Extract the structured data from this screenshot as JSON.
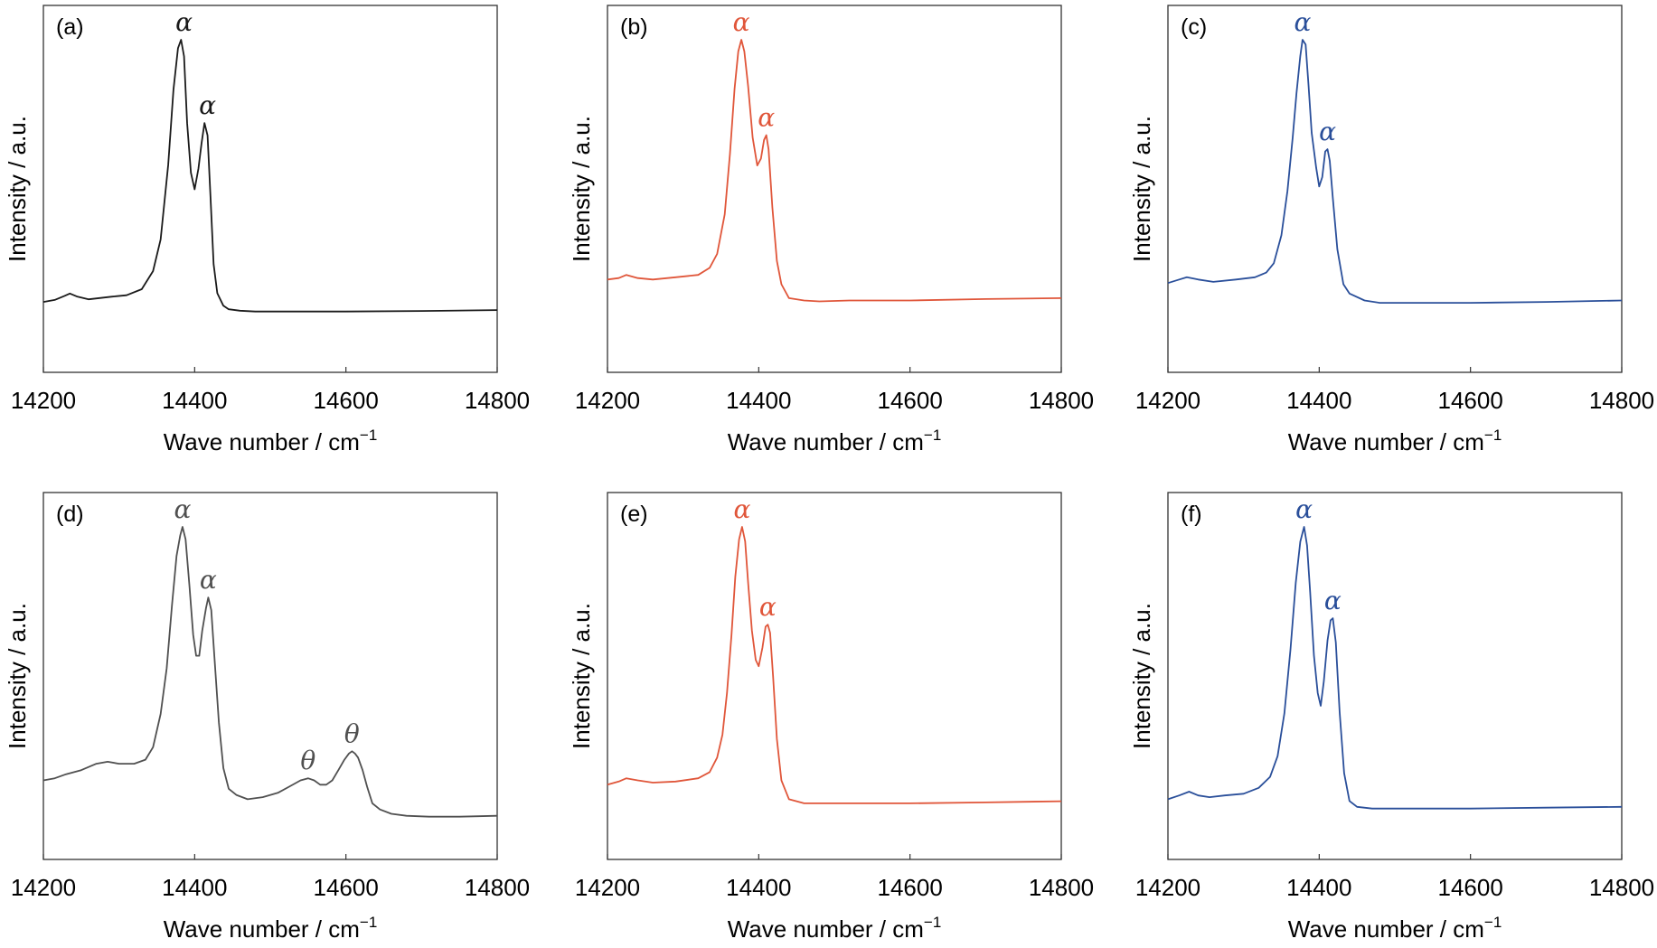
{
  "colors": {
    "black": "#1a1a1a",
    "gray": "#505050",
    "red": "#e0563a",
    "blue": "#2a4f9a"
  },
  "xlabel": "Wave number / cm",
  "xlabel_sup": "−1",
  "ylabel": "Intensity / a.u.",
  "chart_data": [
    {
      "type": "line",
      "panel": "(a)",
      "color": "#1a1a1a",
      "xlim": [
        14200,
        14800
      ],
      "xticks": [
        14200,
        14400,
        14600,
        14800
      ],
      "xlabel": "Wave number / cm−1",
      "ylabel": "Intensity / a.u.",
      "ylim": [
        0,
        100
      ],
      "series": [
        {
          "x": [
            14200,
            14215,
            14228,
            14235,
            14245,
            14260,
            14290,
            14310,
            14330,
            14345,
            14355,
            14365,
            14372,
            14378,
            14382,
            14386,
            14390,
            14395,
            14400,
            14405,
            14409,
            14413,
            14417,
            14421,
            14425,
            14430,
            14438,
            14445,
            14460,
            14480,
            14520,
            14600,
            14700,
            14800
          ],
          "y": [
            9.9,
            10.6,
            12.0,
            12.8,
            11.7,
            10.8,
            11.7,
            12.2,
            14.3,
            20.5,
            31.4,
            57.1,
            82.9,
            97.1,
            100,
            94.3,
            71.4,
            54.3,
            48.6,
            55.7,
            64.3,
            71.4,
            67.1,
            45.7,
            22.9,
            12.9,
            8.6,
            7.4,
            6.9,
            6.6,
            6.6,
            6.6,
            6.8,
            7.1
          ]
        }
      ],
      "annotations": [
        {
          "text": "α",
          "x": 14386,
          "y": 100
        },
        {
          "text": "α",
          "x": 14417,
          "y": 71.4
        }
      ]
    },
    {
      "type": "line",
      "panel": "(b)",
      "color": "#e0563a",
      "xlim": [
        14200,
        14800
      ],
      "xticks": [
        14200,
        14400,
        14600,
        14800
      ],
      "xlabel": "Wave number / cm−1",
      "ylabel": "Intensity / a.u.",
      "ylim": [
        0,
        100
      ],
      "series": [
        {
          "x": [
            14200,
            14215,
            14225,
            14240,
            14260,
            14290,
            14320,
            14335,
            14345,
            14355,
            14362,
            14368,
            14373,
            14377,
            14381,
            14386,
            14392,
            14398,
            14403,
            14407,
            14410,
            14413,
            14418,
            14424,
            14430,
            14440,
            14460,
            14480,
            14520,
            14600,
            14700,
            14800
          ],
          "y": [
            17.6,
            18.1,
            19.2,
            18.1,
            17.6,
            18.4,
            19.2,
            21.6,
            26.4,
            40.0,
            60.8,
            83.2,
            96.0,
            100,
            96.0,
            84.0,
            66.4,
            56.8,
            59.2,
            65.6,
            67.2,
            62.4,
            42.4,
            24.0,
            16.0,
            11.2,
            10.4,
            10.1,
            10.4,
            10.4,
            10.9,
            11.2
          ]
        }
      ],
      "annotations": [
        {
          "text": "α",
          "x": 14377,
          "y": 100
        },
        {
          "text": "α",
          "x": 14410,
          "y": 67.2
        }
      ]
    },
    {
      "type": "line",
      "panel": "(c)",
      "color": "#2a4f9a",
      "xlim": [
        14200,
        14800
      ],
      "xticks": [
        14200,
        14400,
        14600,
        14800
      ],
      "xlabel": "Wave number / cm−1",
      "ylabel": "Intensity / a.u.",
      "ylim": [
        0,
        100
      ],
      "series": [
        {
          "x": [
            14200,
            14215,
            14225,
            14240,
            14260,
            14290,
            14315,
            14330,
            14340,
            14350,
            14358,
            14365,
            14370,
            14375,
            14378,
            14382,
            14386,
            14390,
            14396,
            14400,
            14404,
            14408,
            14411,
            14414,
            14418,
            14424,
            14432,
            14440,
            14460,
            14480,
            14520,
            14600,
            14700,
            14800
          ],
          "y": [
            16.4,
            17.6,
            18.4,
            17.6,
            16.8,
            17.6,
            18.4,
            20.0,
            23.2,
            32.8,
            48.0,
            66.4,
            81.6,
            94.4,
            100,
            98.4,
            84.0,
            68.0,
            56.0,
            49.6,
            52.8,
            61.6,
            62.4,
            58.4,
            45.6,
            28.0,
            16.0,
            12.8,
            10.4,
            9.6,
            9.6,
            9.6,
            9.9,
            10.4
          ]
        }
      ],
      "annotations": [
        {
          "text": "α",
          "x": 14378,
          "y": 100
        },
        {
          "text": "α",
          "x": 14411,
          "y": 62.4
        }
      ]
    },
    {
      "type": "line",
      "panel": "(d)",
      "color": "#505050",
      "xlim": [
        14200,
        14800
      ],
      "xticks": [
        14200,
        14400,
        14600,
        14800
      ],
      "xlabel": "Wave number / cm−1",
      "ylabel": "Intensity / a.u.",
      "ylim": [
        0,
        100
      ],
      "series": [
        {
          "x": [
            14200,
            14215,
            14230,
            14250,
            14270,
            14285,
            14300,
            14320,
            14335,
            14345,
            14355,
            14363,
            14370,
            14376,
            14381,
            14384,
            14388,
            14393,
            14398,
            14402,
            14406,
            14410,
            14415,
            14418,
            14422,
            14426,
            14432,
            14438,
            14445,
            14455,
            14470,
            14490,
            14510,
            14525,
            14540,
            14550,
            14558,
            14566,
            14574,
            14582,
            14590,
            14598,
            14604,
            14608,
            14612,
            14616,
            14622,
            14628,
            14635,
            14645,
            14660,
            14680,
            14710,
            14750,
            14800
          ],
          "y": [
            12.9,
            13.6,
            15.0,
            16.4,
            18.6,
            19.3,
            18.6,
            18.6,
            20.0,
            24.3,
            35.7,
            51.4,
            72.9,
            90.0,
            97.1,
            100,
            95.7,
            80.0,
            62.9,
            55.7,
            55.7,
            64.3,
            72.1,
            75.7,
            71.4,
            55.7,
            32.9,
            17.1,
            10.0,
            7.9,
            6.4,
            7.1,
            8.6,
            10.7,
            12.9,
            13.6,
            12.9,
            11.4,
            11.4,
            12.9,
            16.4,
            20.0,
            22.1,
            22.9,
            22.1,
            20.7,
            16.4,
            10.7,
            5.0,
            2.9,
            1.4,
            0.7,
            0.4,
            0.4,
            0.7
          ]
        }
      ],
      "annotations": [
        {
          "text": "α",
          "x": 14384,
          "y": 100
        },
        {
          "text": "α",
          "x": 14418,
          "y": 75.7
        },
        {
          "text": "θ",
          "x": 14550,
          "y": 13.6
        },
        {
          "text": "θ",
          "x": 14608,
          "y": 22.9
        }
      ]
    },
    {
      "type": "line",
      "panel": "(e)",
      "color": "#e0563a",
      "xlim": [
        14200,
        14800
      ],
      "xticks": [
        14200,
        14400,
        14600,
        14800
      ],
      "xlabel": "Wave number / cm−1",
      "ylabel": "Intensity / a.u.",
      "ylim": [
        0,
        100
      ],
      "series": [
        {
          "x": [
            14200,
            14215,
            14225,
            14240,
            14260,
            14290,
            14320,
            14335,
            14345,
            14352,
            14358,
            14364,
            14369,
            14374,
            14378,
            14382,
            14386,
            14391,
            14396,
            14400,
            14405,
            14409,
            14412,
            14415,
            14419,
            14424,
            14430,
            14440,
            14460,
            14480,
            14520,
            14600,
            14700,
            14800
          ],
          "y": [
            11.4,
            12.5,
            13.6,
            12.9,
            12.1,
            12.5,
            13.6,
            15.7,
            20.7,
            28.6,
            42.9,
            62.9,
            82.9,
            95.7,
            100,
            95.0,
            80.7,
            64.3,
            54.3,
            52.1,
            58.6,
            65.7,
            66.4,
            63.6,
            48.6,
            27.1,
            12.9,
            6.4,
            5.0,
            5.0,
            5.0,
            5.0,
            5.3,
            5.7
          ]
        }
      ],
      "annotations": [
        {
          "text": "α",
          "x": 14378,
          "y": 100
        },
        {
          "text": "α",
          "x": 14412,
          "y": 66.4
        }
      ]
    },
    {
      "type": "line",
      "panel": "(f)",
      "color": "#2a4f9a",
      "xlim": [
        14200,
        14800
      ],
      "xticks": [
        14200,
        14400,
        14600,
        14800
      ],
      "xlabel": "Wave number / cm−1",
      "ylabel": "Intensity / a.u.",
      "ylim": [
        0,
        100
      ],
      "series": [
        {
          "x": [
            14200,
            14215,
            14228,
            14240,
            14255,
            14275,
            14300,
            14320,
            14335,
            14345,
            14354,
            14362,
            14369,
            14375,
            14380,
            14384,
            14388,
            14393,
            14398,
            14402,
            14406,
            14411,
            14415,
            14418,
            14422,
            14427,
            14433,
            14440,
            14450,
            14470,
            14500,
            14600,
            14700,
            14800
          ],
          "y": [
            6.4,
            7.7,
            9.0,
            7.7,
            7.1,
            7.7,
            8.3,
            10.3,
            14.1,
            21.2,
            35.9,
            57.7,
            80.8,
            94.9,
            100,
            93.6,
            77.6,
            55.8,
            42.9,
            38.5,
            46.8,
            60.9,
            67.9,
            68.6,
            60.3,
            36.5,
            15.4,
            5.8,
            3.8,
            3.2,
            3.2,
            3.2,
            3.5,
            3.8
          ]
        }
      ],
      "annotations": [
        {
          "text": "α",
          "x": 14380,
          "y": 100
        },
        {
          "text": "α",
          "x": 14418,
          "y": 68.6
        }
      ]
    }
  ]
}
